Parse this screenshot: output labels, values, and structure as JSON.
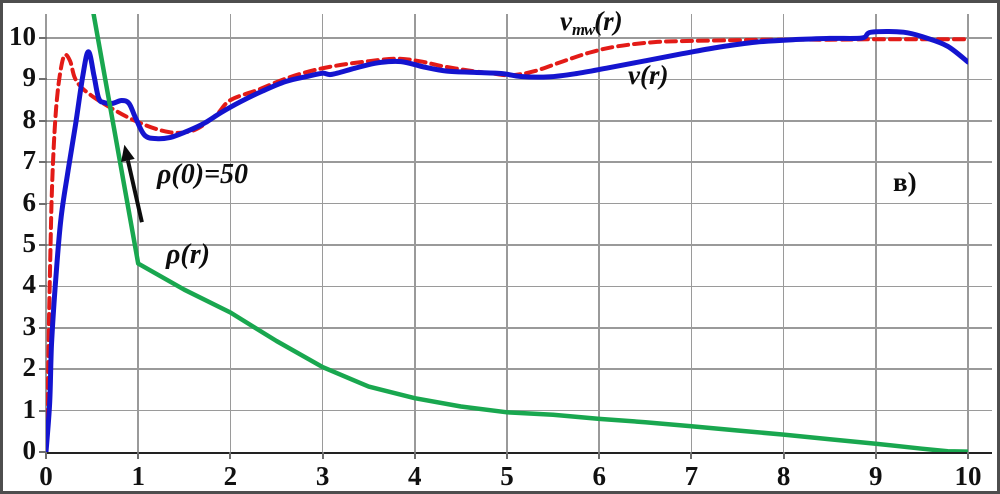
{
  "panel_label": "в)",
  "annotations": {
    "rho_at_zero": "ρ(0)=50",
    "rho_label": "ρ(r)",
    "v_label": "v(r)",
    "vmw_prefix": "v",
    "vmw_sub": "mw",
    "vmw_suffix": "(r)",
    "arrow": {
      "tail": [
        1.04,
        5.55
      ],
      "tip": [
        0.85,
        7.42
      ]
    }
  },
  "colors": {
    "v_blue": "#1414cf",
    "vmw_red": "#e31b17",
    "rho_green": "#19a74f",
    "grid": "#9a9a9a",
    "axis": "#222222",
    "text": "#111111"
  },
  "chart_data": {
    "type": "line",
    "title": "",
    "xlabel": "",
    "ylabel": "",
    "xlim": [
      0,
      10
    ],
    "ylim": [
      0,
      10.58
    ],
    "grid": true,
    "x_ticks": [
      "0",
      "1",
      "2",
      "3",
      "4",
      "5",
      "6",
      "7",
      "8",
      "9",
      "10"
    ],
    "y_ticks": [
      "0",
      "1",
      "2",
      "3",
      "4",
      "5",
      "6",
      "7",
      "8",
      "9",
      "10"
    ],
    "series": [
      {
        "name": "v_mw(r)",
        "color": "#e31b17",
        "style": "dashed",
        "smooth": true,
        "width": 4,
        "points": [
          [
            0,
            0
          ],
          [
            0.02,
            1.5
          ],
          [
            0.03,
            3.0
          ],
          [
            0.045,
            4.5
          ],
          [
            0.06,
            6.0
          ],
          [
            0.08,
            7.2
          ],
          [
            0.11,
            8.3
          ],
          [
            0.15,
            9.1
          ],
          [
            0.2,
            9.58
          ],
          [
            0.26,
            9.45
          ],
          [
            0.31,
            9.05
          ],
          [
            0.38,
            8.82
          ],
          [
            0.48,
            8.63
          ],
          [
            0.6,
            8.45
          ],
          [
            0.75,
            8.25
          ],
          [
            0.9,
            8.07
          ],
          [
            1.05,
            7.92
          ],
          [
            1.2,
            7.8
          ],
          [
            1.35,
            7.72
          ],
          [
            1.5,
            7.72
          ],
          [
            1.65,
            7.82
          ],
          [
            1.85,
            8.15
          ],
          [
            2.0,
            8.5
          ],
          [
            2.3,
            8.75
          ],
          [
            2.6,
            9.02
          ],
          [
            2.9,
            9.22
          ],
          [
            3.2,
            9.35
          ],
          [
            3.5,
            9.44
          ],
          [
            3.8,
            9.5
          ],
          [
            4.05,
            9.44
          ],
          [
            4.3,
            9.32
          ],
          [
            4.6,
            9.21
          ],
          [
            4.85,
            9.14
          ],
          [
            5.05,
            9.1
          ],
          [
            5.3,
            9.2
          ],
          [
            5.6,
            9.43
          ],
          [
            5.9,
            9.65
          ],
          [
            6.2,
            9.8
          ],
          [
            6.6,
            9.9
          ],
          [
            7.0,
            9.93
          ],
          [
            7.5,
            9.95
          ],
          [
            8.0,
            9.96
          ],
          [
            8.5,
            9.96
          ],
          [
            9.0,
            9.97
          ],
          [
            9.5,
            9.97
          ],
          [
            10.0,
            9.97
          ]
        ]
      },
      {
        "name": "v(r)",
        "color": "#1414cf",
        "style": "solid",
        "smooth": true,
        "width": 5,
        "points": [
          [
            0,
            0
          ],
          [
            0.04,
            1.2
          ],
          [
            0.06,
            2.6
          ],
          [
            0.1,
            4.0
          ],
          [
            0.16,
            5.6
          ],
          [
            0.24,
            6.8
          ],
          [
            0.32,
            7.9
          ],
          [
            0.4,
            9.1
          ],
          [
            0.46,
            9.67
          ],
          [
            0.52,
            9.1
          ],
          [
            0.57,
            8.55
          ],
          [
            0.63,
            8.44
          ],
          [
            0.72,
            8.42
          ],
          [
            0.82,
            8.49
          ],
          [
            0.9,
            8.42
          ],
          [
            0.97,
            8.08
          ],
          [
            1.07,
            7.65
          ],
          [
            1.2,
            7.57
          ],
          [
            1.35,
            7.6
          ],
          [
            1.5,
            7.72
          ],
          [
            1.7,
            7.92
          ],
          [
            1.9,
            8.2
          ],
          [
            2.1,
            8.45
          ],
          [
            2.35,
            8.72
          ],
          [
            2.6,
            8.95
          ],
          [
            2.85,
            9.08
          ],
          [
            3.0,
            9.15
          ],
          [
            3.1,
            9.12
          ],
          [
            3.35,
            9.27
          ],
          [
            3.6,
            9.4
          ],
          [
            3.85,
            9.43
          ],
          [
            4.1,
            9.3
          ],
          [
            4.35,
            9.2
          ],
          [
            4.65,
            9.17
          ],
          [
            4.95,
            9.14
          ],
          [
            5.15,
            9.07
          ],
          [
            5.45,
            9.06
          ],
          [
            5.75,
            9.14
          ],
          [
            6.1,
            9.28
          ],
          [
            6.5,
            9.45
          ],
          [
            6.9,
            9.62
          ],
          [
            7.3,
            9.78
          ],
          [
            7.7,
            9.9
          ],
          [
            8.1,
            9.96
          ],
          [
            8.5,
            9.99
          ],
          [
            8.85,
            10.0
          ],
          [
            8.95,
            10.14
          ],
          [
            9.3,
            10.14
          ],
          [
            9.55,
            10.0
          ],
          [
            9.78,
            9.8
          ],
          [
            10.0,
            9.42
          ]
        ]
      },
      {
        "name": "ρ(r)",
        "color": "#19a74f",
        "style": "solid",
        "smooth": false,
        "width": 4.5,
        "points": [
          [
            0.49,
            10.9
          ],
          [
            1.0,
            4.55
          ],
          [
            1.5,
            3.92
          ],
          [
            2.0,
            3.37
          ],
          [
            2.5,
            2.68
          ],
          [
            3.0,
            2.05
          ],
          [
            3.5,
            1.58
          ],
          [
            4.0,
            1.3
          ],
          [
            4.5,
            1.1
          ],
          [
            5.0,
            0.96
          ],
          [
            5.5,
            0.9
          ],
          [
            6.0,
            0.8
          ],
          [
            6.5,
            0.72
          ],
          [
            7.0,
            0.62
          ],
          [
            7.5,
            0.52
          ],
          [
            8.0,
            0.42
          ],
          [
            8.5,
            0.31
          ],
          [
            9.0,
            0.2
          ],
          [
            9.5,
            0.08
          ],
          [
            9.78,
            0.02
          ],
          [
            10.0,
            0.01
          ]
        ]
      }
    ],
    "legend": "labels drawn inside plot: v_mw(r) red dashed, v(r) blue solid, ρ(r) green solid; arrow annotation ρ(0)=50"
  }
}
